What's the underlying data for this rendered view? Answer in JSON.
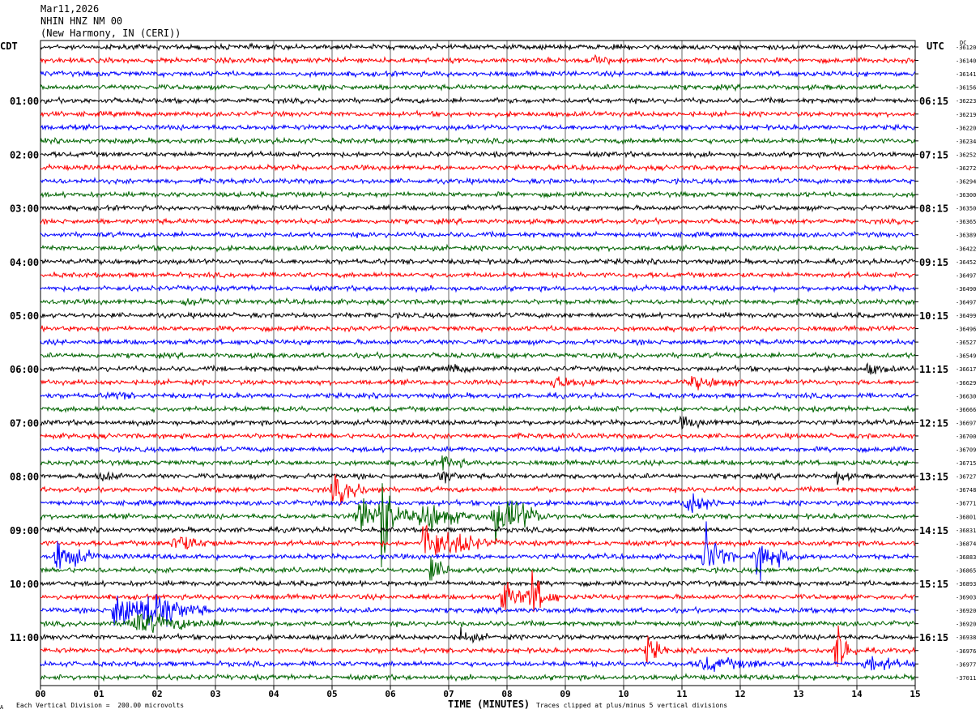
{
  "header": {
    "date": "Mar11,2026",
    "station": "NHIN HNZ NM 00",
    "location": "(New Harmony, IN (CERI))"
  },
  "timezone_left": "CDT",
  "timezone_right": "UTC",
  "dc_label": "DC",
  "footer": {
    "scale_note": "Each Vertical Division =  200.00 microvolts",
    "clip_note": "Traces clipped at plus/minus 5 vertical divisions",
    "corner_mark": "A"
  },
  "colors": {
    "trace_cycle": [
      "#000000",
      "#ff0000",
      "#0000ff",
      "#006400"
    ],
    "grid": "#000000",
    "background": "#ffffff"
  },
  "chart_data": {
    "type": "line",
    "title": "NHIN HNZ NM 00 (New Harmony, IN (CERI))",
    "xlabel": "TIME (MINUTES)",
    "x_ticks": [
      "00",
      "01",
      "02",
      "03",
      "04",
      "05",
      "06",
      "07",
      "08",
      "09",
      "10",
      "11",
      "12",
      "13",
      "14",
      "15"
    ],
    "xlim": [
      0,
      15
    ],
    "trace_minutes": 15,
    "grid": true,
    "left_hour_labels": [
      "01:00",
      "02:00",
      "03:00",
      "04:00",
      "05:00",
      "06:00",
      "07:00",
      "08:00",
      "09:00",
      "10:00",
      "11:00"
    ],
    "right_hour_labels": [
      "06:15",
      "07:15",
      "08:15",
      "09:15",
      "10:15",
      "11:15",
      "12:15",
      "13:15",
      "14:15",
      "15:15",
      "16:15"
    ],
    "trace_dc_offsets": [
      -36120,
      -36140,
      -36141,
      -36156,
      -36223,
      -36219,
      -36220,
      -36234,
      -36252,
      -36272,
      -36294,
      -36300,
      -36350,
      -36365,
      -36389,
      -36422,
      -36452,
      -36497,
      -36490,
      -36497,
      -36499,
      -36496,
      -36527,
      -36549,
      -36617,
      -36629,
      -36630,
      -36666,
      -36697,
      -36700,
      -36709,
      -36715,
      -36727,
      -36748,
      -36771,
      -36801,
      -36831,
      -36874,
      -36883,
      -36865,
      -36893,
      -36903,
      -36920,
      -36920,
      -36938,
      -36976,
      -36977,
      -37011
    ],
    "noise_amplitude": 2.2,
    "events": [
      {
        "trace": 1,
        "minute": 9.5,
        "amp": 3,
        "dur": 0.2
      },
      {
        "trace": 19,
        "minute": 2.5,
        "amp": 4,
        "dur": 0.3
      },
      {
        "trace": 24,
        "minute": 7.0,
        "amp": 4,
        "dur": 0.2
      },
      {
        "trace": 24,
        "minute": 14.2,
        "amp": 5,
        "dur": 0.2
      },
      {
        "trace": 25,
        "minute": 8.8,
        "amp": 5,
        "dur": 0.4
      },
      {
        "trace": 25,
        "minute": 11.2,
        "amp": 5,
        "dur": 0.4
      },
      {
        "trace": 26,
        "minute": 1.2,
        "amp": 4,
        "dur": 0.2
      },
      {
        "trace": 28,
        "minute": 11.0,
        "amp": 4,
        "dur": 0.3
      },
      {
        "trace": 31,
        "minute": 6.9,
        "amp": 7,
        "dur": 0.2
      },
      {
        "trace": 32,
        "minute": 1.0,
        "amp": 6,
        "dur": 0.2
      },
      {
        "trace": 32,
        "minute": 6.85,
        "amp": 8,
        "dur": 0.15
      },
      {
        "trace": 32,
        "minute": 13.65,
        "amp": 8,
        "dur": 0.1
      },
      {
        "trace": 33,
        "minute": 5.05,
        "amp": 12,
        "dur": 0.35
      },
      {
        "trace": 34,
        "minute": 11.1,
        "amp": 12,
        "dur": 0.25
      },
      {
        "trace": 35,
        "minute": 5.5,
        "amp": 18,
        "dur": 0.5
      },
      {
        "trace": 35,
        "minute": 5.85,
        "amp": 75,
        "dur": 0.08
      },
      {
        "trace": 35,
        "minute": 6.6,
        "amp": 14,
        "dur": 0.4
      },
      {
        "trace": 35,
        "minute": 7.8,
        "amp": 20,
        "dur": 0.3
      },
      {
        "trace": 35,
        "minute": 8.1,
        "amp": 10,
        "dur": 0.3
      },
      {
        "trace": 37,
        "minute": 2.3,
        "amp": 10,
        "dur": 0.3
      },
      {
        "trace": 37,
        "minute": 6.6,
        "amp": 25,
        "dur": 0.3
      },
      {
        "trace": 37,
        "minute": 7.2,
        "amp": 8,
        "dur": 0.3
      },
      {
        "trace": 38,
        "minute": 0.3,
        "amp": 16,
        "dur": 0.3
      },
      {
        "trace": 38,
        "minute": 11.4,
        "amp": 30,
        "dur": 0.2
      },
      {
        "trace": 38,
        "minute": 12.3,
        "amp": 18,
        "dur": 0.3
      },
      {
        "trace": 39,
        "minute": 6.7,
        "amp": 12,
        "dur": 0.2
      },
      {
        "trace": 41,
        "minute": 7.9,
        "amp": 14,
        "dur": 0.3
      },
      {
        "trace": 41,
        "minute": 8.4,
        "amp": 22,
        "dur": 0.2
      },
      {
        "trace": 42,
        "minute": 1.3,
        "amp": 22,
        "dur": 0.4
      },
      {
        "trace": 42,
        "minute": 1.9,
        "amp": 20,
        "dur": 0.4
      },
      {
        "trace": 43,
        "minute": 1.6,
        "amp": 10,
        "dur": 0.7
      },
      {
        "trace": 44,
        "minute": 7.2,
        "amp": 6,
        "dur": 0.2
      },
      {
        "trace": 45,
        "minute": 10.4,
        "amp": 14,
        "dur": 0.15
      },
      {
        "trace": 45,
        "minute": 13.65,
        "amp": 28,
        "dur": 0.15
      },
      {
        "trace": 46,
        "minute": 11.4,
        "amp": 6,
        "dur": 0.6
      },
      {
        "trace": 46,
        "minute": 14.2,
        "amp": 7,
        "dur": 0.4
      }
    ]
  }
}
